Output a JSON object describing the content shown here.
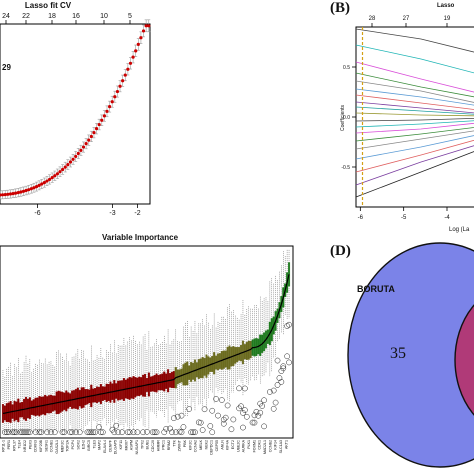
{
  "panels": {
    "A": {
      "title": "Lasso fit CV",
      "top_ticks": [
        "24",
        "22",
        "18",
        "16",
        "10",
        "5"
      ],
      "bottom_ticks": [
        "-6",
        "-3",
        "-2"
      ],
      "annotation": "29",
      "annotation_color": "#d4a017",
      "point_color": "#cc0000",
      "band_color": "#9a9a9a"
    },
    "B": {
      "tag": "(B)",
      "top_title": "Lasso",
      "top_ticks": [
        "28",
        "27",
        "19"
      ],
      "y_ticks": [
        "0.5",
        "0.0",
        "-0.5"
      ],
      "ylabel": "Coefficients",
      "x_ticks": [
        "-6",
        "-5",
        "-4"
      ],
      "xlabel": "Log (La",
      "vline_color": "#d4a017"
    },
    "C": {
      "title": "Variable Importance",
      "colors": {
        "shadow": "#8b0000",
        "tentative": "#6b6b1f",
        "confirmed": "#1f7a1f"
      },
      "x_labels": [
        "RP11-1",
        "PER1",
        "RPL37",
        "TLE4",
        "NR1D2",
        "PBX3",
        "CDKN3",
        "KIF20B",
        "SESN1",
        "CCNB1",
        "GAS2L1",
        "MEF2C",
        "TOP2A",
        "PCP4",
        "SOX2",
        "EZH2",
        "BIRC5",
        "TLE3",
        "MAP2",
        "ELAVL4",
        "CENPF",
        "DLGAP5",
        "KIF11",
        "MKI67",
        "ASPM",
        "NUSAP1",
        "TPX2",
        "BUB1",
        "CDC20",
        "HMMR",
        "PRC1",
        "RRM2",
        "TTK",
        "ZWINT",
        "PBK",
        "KIF2C",
        "CCNA2",
        "MELK",
        "NEK2",
        "DEPDC1",
        "CEP55",
        "ANLN",
        "KIF4A",
        "ECT2",
        "UBE2C",
        "AURKA",
        "PLK1",
        "FOXM1",
        "CDK1",
        "MAD2L1",
        "CCNB2",
        "KIF14",
        "SLC1A3",
        "AKT1"
      ]
    },
    "D": {
      "tag": "(D)",
      "set_label": "BORUTA",
      "count": "35",
      "left_color": "#7b83e8",
      "right_color": "#b03a78"
    }
  },
  "chart_data": [
    {
      "panel": "A",
      "type": "scatter",
      "title": "Lasso fit CV",
      "xlabel": "",
      "ylabel": "",
      "x_ticks": [
        -6,
        -3,
        -2
      ],
      "top_axis_ticks": [
        24,
        22,
        18,
        16,
        10,
        5
      ],
      "xlim": [
        -7.5,
        -1.5
      ],
      "ylim": [
        0.0,
        1.0
      ],
      "points": {
        "x_start": -7.5,
        "x_end": -1.55,
        "n": 58,
        "curve": "convex-increasing",
        "y_start": 0.05,
        "y_end": 0.98
      },
      "error_band": true,
      "annotation": "29"
    },
    {
      "panel": "B",
      "type": "line",
      "title": "Lasso",
      "xlabel": "Log (La",
      "ylabel": "Coefficients",
      "x_ticks": [
        -6,
        -5,
        -4
      ],
      "y_ticks": [
        0.5,
        0.0,
        -0.5
      ],
      "top_axis_ticks": [
        28,
        27,
        19
      ],
      "xlim": [
        -6.1,
        -3.1
      ],
      "ylim": [
        -0.9,
        0.9
      ],
      "vline_x": -5.95,
      "series": [
        {
          "values": [
            0.88,
            0.78,
            0.62
          ]
        },
        {
          "values": [
            0.72,
            0.58,
            0.41
          ]
        },
        {
          "values": [
            0.55,
            0.38,
            0.22
          ]
        },
        {
          "values": [
            0.44,
            0.3,
            0.18
          ]
        },
        {
          "values": [
            0.36,
            0.26,
            0.12
          ]
        },
        {
          "values": [
            0.28,
            0.2,
            0.1
          ]
        },
        {
          "values": [
            0.22,
            0.14,
            0.06
          ]
        },
        {
          "values": [
            0.15,
            0.09,
            0.03
          ]
        },
        {
          "values": [
            0.1,
            0.06,
            0.02
          ]
        },
        {
          "values": [
            0.04,
            0.02,
            0.01
          ]
        },
        {
          "values": [
            -0.04,
            -0.03,
            -0.01
          ]
        },
        {
          "values": [
            -0.1,
            -0.07,
            -0.03
          ]
        },
        {
          "values": [
            -0.16,
            -0.12,
            -0.05
          ]
        },
        {
          "values": [
            -0.24,
            -0.17,
            -0.09
          ]
        },
        {
          "values": [
            -0.32,
            -0.22,
            -0.12
          ]
        },
        {
          "values": [
            -0.42,
            -0.3,
            -0.16
          ]
        },
        {
          "values": [
            -0.55,
            -0.38,
            -0.2
          ]
        },
        {
          "values": [
            -0.68,
            -0.45,
            -0.25
          ]
        },
        {
          "values": [
            -0.8,
            -0.55,
            -0.3
          ]
        }
      ],
      "series_colors": [
        "#444444",
        "#1fb5b5",
        "#d94fd9",
        "#3b8c3b",
        "#888888",
        "#5b9bd5",
        "#e06060",
        "#7b3fa0",
        "#20a0a0",
        "#999933",
        "#444444",
        "#1fb5b5",
        "#d94fd9",
        "#3b8c3b",
        "#888888",
        "#5b9bd5",
        "#e06060",
        "#7b3fa0",
        "#222222"
      ]
    },
    {
      "panel": "C",
      "type": "box",
      "title": "Variable Importance",
      "xlabel": "",
      "ylabel": "",
      "n_boxes": 150,
      "groups": [
        {
          "name": "shadow",
          "from": 0,
          "to": 89,
          "median_start": 0.12,
          "median_end": 0.3
        },
        {
          "name": "tentative",
          "from": 90,
          "to": 129,
          "median_start": 0.31,
          "median_end": 0.46
        },
        {
          "name": "confirmed",
          "from": 130,
          "to": 149,
          "median_start": 0.47,
          "median_end": 0.86
        }
      ],
      "ylim": [
        0,
        1
      ]
    },
    {
      "panel": "D",
      "type": "venn",
      "sets": [
        {
          "label": "BORUTA",
          "only": 35
        }
      ]
    }
  ]
}
